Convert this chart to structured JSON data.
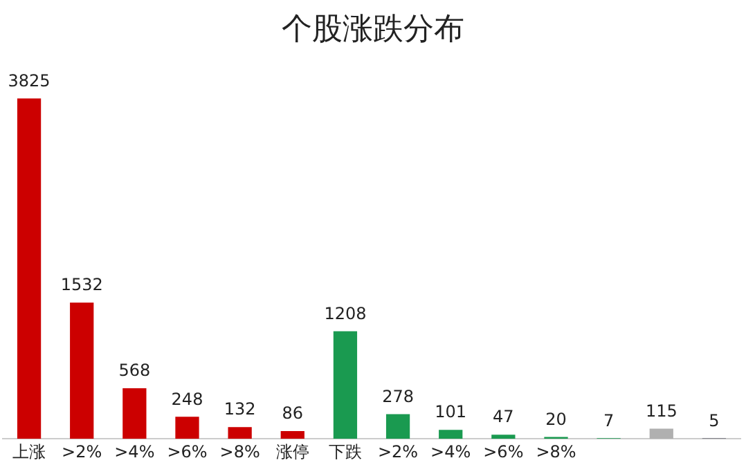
{
  "chart_data": {
    "type": "bar",
    "title": "个股涨跌分布",
    "categories": [
      "上涨",
      ">2%",
      ">4%",
      ">6%",
      ">8%",
      "涨停",
      "下跌",
      ">2%",
      ">4%",
      ">6%",
      ">8%",
      null,
      null,
      null
    ],
    "values": [
      3825,
      1532,
      568,
      248,
      132,
      86,
      1208,
      278,
      101,
      47,
      20,
      7,
      115,
      5
    ],
    "colors": [
      "#cc0000",
      "#cc0000",
      "#cc0000",
      "#cc0000",
      "#cc0000",
      "#cc0000",
      "#1a9a50",
      "#1a9a50",
      "#1a9a50",
      "#1a9a50",
      "#1a9a50",
      "#1a9a50",
      "#b0b0b0",
      "#404050"
    ],
    "data_labels": true,
    "grid": false,
    "legend": false
  }
}
